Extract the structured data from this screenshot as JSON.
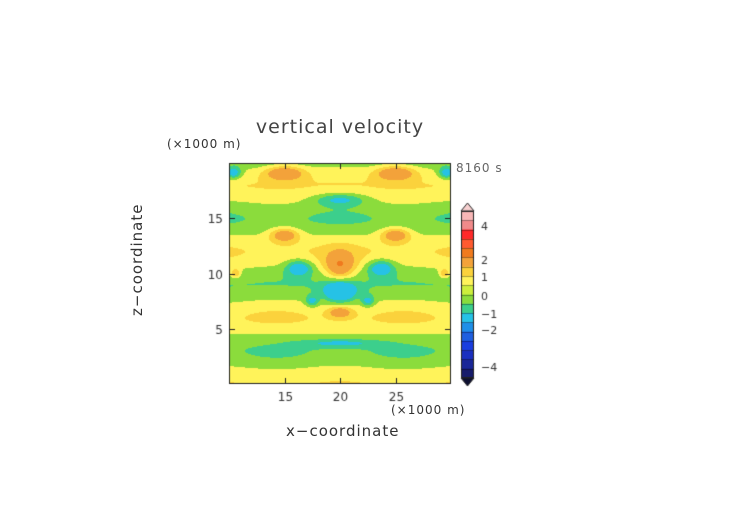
{
  "chart_data": {
    "type": "heatmap",
    "title": "vertical velocity",
    "xlabel": "x−coordinate",
    "ylabel": "z−coordinate",
    "x_unit": "(×1000 m)",
    "y_unit": "(×1000 m)",
    "time_label": "8160 s",
    "xlim": [
      10,
      30
    ],
    "ylim": [
      0,
      20
    ],
    "x_ticks": [
      15,
      20,
      25
    ],
    "y_ticks": [
      5,
      10,
      15
    ],
    "x_tick_labels": [
      "15",
      "20",
      "25"
    ],
    "y_tick_labels": [
      "5",
      "10",
      "15"
    ],
    "colorbar": {
      "levels": [
        -5,
        -4.5,
        -4,
        -3.5,
        -3,
        -2.5,
        -2,
        -1.5,
        -1,
        -0.5,
        0,
        0.5,
        1,
        1.5,
        2,
        2.5,
        3,
        4,
        5
      ],
      "tick_values": [
        4,
        2,
        1,
        0,
        -1,
        -2,
        -4
      ],
      "tick_labels": [
        "4",
        "2",
        "1",
        "0",
        "−1",
        "−2",
        "−4"
      ],
      "colors_top_to_bottom": [
        "#f7b6b6",
        "#f08a8a",
        "#ff2a2a",
        "#ff5a30",
        "#f07a1e",
        "#f3a23a",
        "#fbd23c",
        "#fff35a",
        "#cdee3c",
        "#8bdc3c",
        "#3ccf8c",
        "#26c2e6",
        "#1e8fe8",
        "#1f5fe0",
        "#1a3ee0",
        "#1a2fc0",
        "#1a2698",
        "#171c6c"
      ],
      "extend": "both"
    },
    "features": [
      {
        "x": 20,
        "z": 8.4,
        "value": -1.2
      },
      {
        "x": 20,
        "z": 10.7,
        "value": 0.9
      },
      {
        "x": 16.3,
        "z": 10.5,
        "value": -0.8
      },
      {
        "x": 23.7,
        "z": 10.5,
        "value": -0.8
      },
      {
        "x": 20,
        "z": 16.7,
        "value": -0.6
      },
      {
        "x": 15,
        "z": 13.5,
        "value": 0.8
      },
      {
        "x": 25,
        "z": 13.5,
        "value": 0.8
      },
      {
        "x": 15,
        "z": 19.1,
        "value": 0.9
      },
      {
        "x": 25,
        "z": 19.1,
        "value": 0.9
      },
      {
        "x": 10.4,
        "z": 19.1,
        "value": -0.8
      },
      {
        "x": 29.6,
        "z": 19.1,
        "value": -0.8
      },
      {
        "x": 20,
        "z": 6.5,
        "value": 0.7
      },
      {
        "x": 10.6,
        "z": 10,
        "value": 0.6
      },
      {
        "x": 29.4,
        "z": 10,
        "value": 0.6
      }
    ]
  }
}
